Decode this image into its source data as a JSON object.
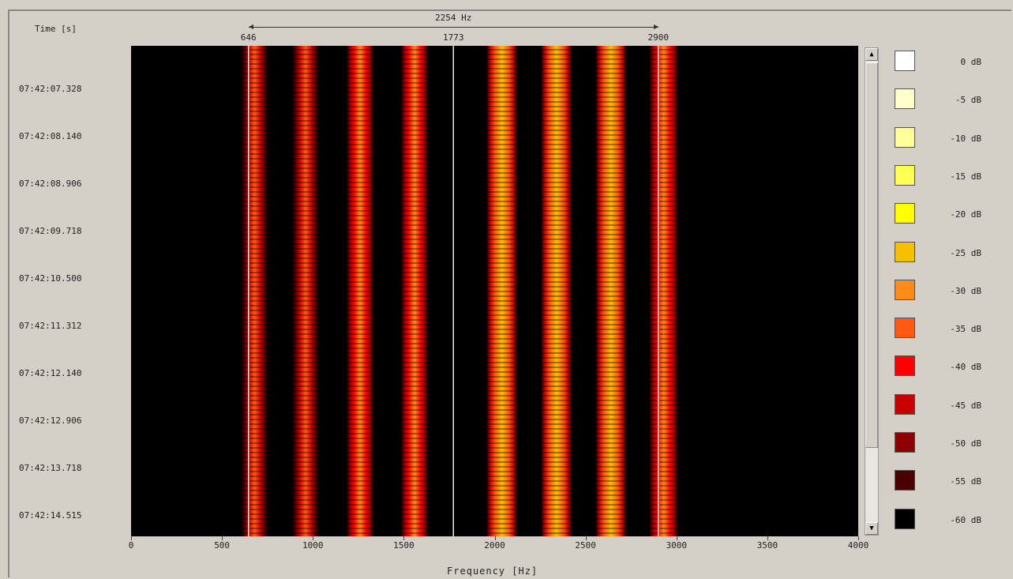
{
  "chart_data": {
    "type": "heatmap",
    "time_axis_label": "Time [s]",
    "time_ticks": [
      "07:42:07.328",
      "07:42:08.140",
      "07:42:08.906",
      "07:42:09.718",
      "07:42:10.500",
      "07:42:11.312",
      "07:42:12.140",
      "07:42:12.906",
      "07:42:13.718",
      "07:42:14.515"
    ],
    "xlabel": "Frequency [Hz]",
    "xlim": [
      0,
      4000
    ],
    "x_ticks": [
      "0",
      "500",
      "1000",
      "1500",
      "2000",
      "2500",
      "3000",
      "3500",
      "4000"
    ],
    "markers": [
      {
        "label": "646",
        "freq": 646
      },
      {
        "label": "1773",
        "freq": 1773
      },
      {
        "label": "2900",
        "freq": 2900
      }
    ],
    "span_label": "2254 Hz",
    "bands": [
      {
        "center": 680,
        "width": 150,
        "level": -35
      },
      {
        "center": 960,
        "width": 150,
        "level": -33
      },
      {
        "center": 1260,
        "width": 150,
        "level": -31
      },
      {
        "center": 1560,
        "width": 150,
        "level": -31
      },
      {
        "center": 2040,
        "width": 170,
        "level": -26
      },
      {
        "center": 2340,
        "width": 170,
        "level": -24
      },
      {
        "center": 2640,
        "width": 170,
        "level": -24
      },
      {
        "center": 2930,
        "width": 160,
        "level": -30
      }
    ],
    "color_scale": [
      {
        "label": "0 dB",
        "color": "#ffffff"
      },
      {
        "label": "-5 dB",
        "color": "#ffffcc"
      },
      {
        "label": "-10 dB",
        "color": "#ffff99"
      },
      {
        "label": "-15 dB",
        "color": "#ffff55"
      },
      {
        "label": "-20 dB",
        "color": "#ffff00"
      },
      {
        "label": "-25 dB",
        "color": "#f5c000"
      },
      {
        "label": "-30 dB",
        "color": "#ff8c1a"
      },
      {
        "label": "-35 dB",
        "color": "#ff5a14"
      },
      {
        "label": "-40 dB",
        "color": "#ff0000"
      },
      {
        "label": "-45 dB",
        "color": "#c80000"
      },
      {
        "label": "-50 dB",
        "color": "#8c0000"
      },
      {
        "label": "-55 dB",
        "color": "#4a0000"
      },
      {
        "label": "-60 dB",
        "color": "#000000"
      }
    ]
  },
  "scrollbar": {
    "up_glyph": "▲",
    "down_glyph": "▼"
  }
}
